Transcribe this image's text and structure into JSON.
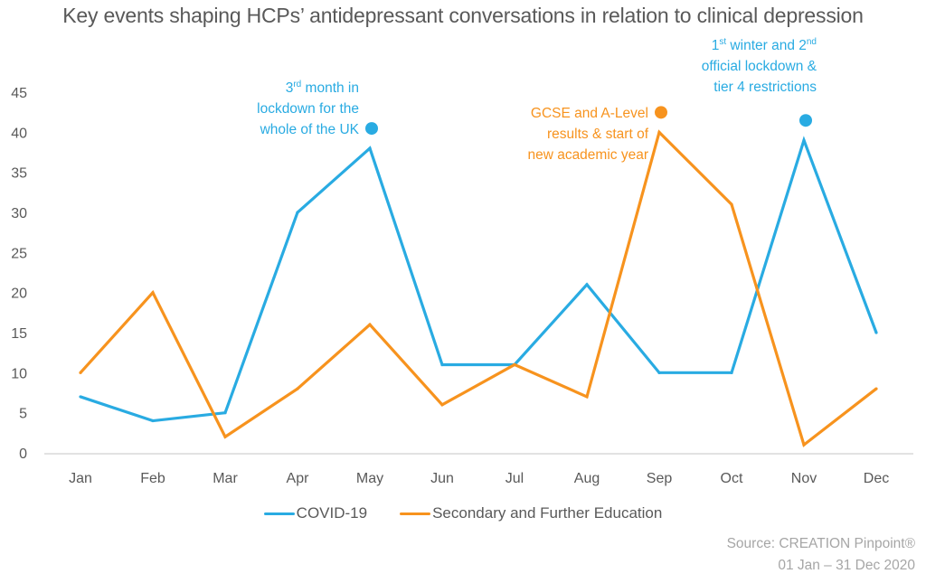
{
  "chart_data": {
    "type": "line",
    "title": "Key events shaping HCPs’ antidepressant conversations in relation to clinical depression",
    "xlabel": "",
    "ylabel": "",
    "categories": [
      "Jan",
      "Feb",
      "Mar",
      "Apr",
      "May",
      "Jun",
      "Jul",
      "Aug",
      "Sep",
      "Oct",
      "Nov",
      "Dec"
    ],
    "ylim": [
      0,
      45
    ],
    "yticks": [
      0,
      5,
      10,
      15,
      20,
      25,
      30,
      35,
      40,
      45
    ],
    "grid": false,
    "legend_position": "bottom",
    "series": [
      {
        "name": "COVID-19",
        "color": "#29ABE2",
        "values": [
          7,
          4,
          5,
          30,
          38,
          11,
          11,
          21,
          10,
          10,
          39,
          15
        ]
      },
      {
        "name": "Secondary and Further Education",
        "color": "#F7931E",
        "values": [
          10,
          20,
          2,
          8,
          16,
          6,
          11,
          7,
          40,
          31,
          1,
          8
        ]
      }
    ],
    "annotations": [
      {
        "series": "COVID-19",
        "category": "May",
        "color": "#29ABE2",
        "lines": [
          {
            "pre": "3",
            "sup": "rd",
            "post": " month in"
          },
          {
            "pre": "lockdown for the"
          },
          {
            "pre": "whole of the UK"
          }
        ]
      },
      {
        "series": "Secondary and Further Education",
        "category": "Sep",
        "color": "#F7931E",
        "lines": [
          {
            "pre": "GCSE and A-Level"
          },
          {
            "pre": "results & start of"
          },
          {
            "pre": "new academic year"
          }
        ]
      },
      {
        "series": "COVID-19",
        "category": "Nov",
        "color": "#29ABE2",
        "lines": [
          {
            "pre": "1",
            "sup": "st",
            "post": " winter and 2",
            "sup2": "nd"
          },
          {
            "pre": "official lockdown &"
          },
          {
            "pre": "tier 4 restrictions"
          }
        ]
      }
    ]
  },
  "source": {
    "line1": "Source: CREATION Pinpoint®",
    "line2": "01 Jan – 31 Dec 2020"
  }
}
